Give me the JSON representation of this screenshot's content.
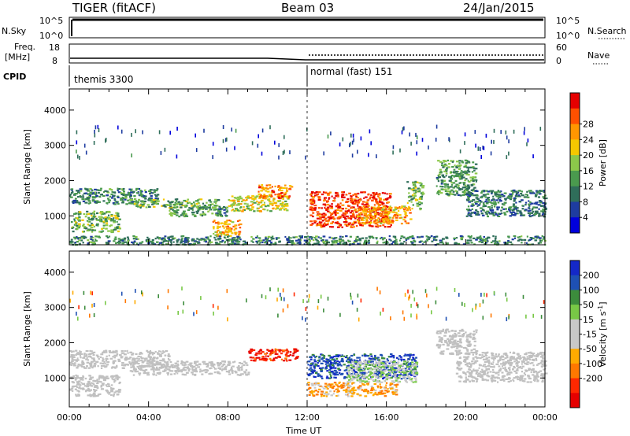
{
  "header": {
    "title": "TIGER (fitACF)",
    "beam": "Beam 03",
    "date": "24/Jan/2015"
  },
  "strips": {
    "nsky_label": "N.Sky",
    "nsearch_label": "N.Search",
    "nsky_ticks": [
      "10^5",
      "10^0"
    ],
    "nsearch_ticks": [
      "10^5",
      "10^0"
    ],
    "freq_label_line1": "Freq.",
    "freq_label_line2": "[MHz]",
    "freq_ticks": [
      "18",
      "8"
    ],
    "nave_label": "Nave",
    "nave_ticks": [
      "60",
      "0"
    ],
    "cpid_label": "CPID",
    "cpid_segments": [
      "themis 3300",
      "normal (fast) 151"
    ]
  },
  "colors": {
    "power_scale": [
      "#0000dc",
      "#1e3ca0",
      "#2f6e5a",
      "#4a9a4e",
      "#8cc84a",
      "#f5c800",
      "#ff9600",
      "#ff5000",
      "#e60000"
    ],
    "velocity_scale": [
      "#1428c8",
      "#1e50b4",
      "#3c8c3c",
      "#78c846",
      "#c8c8c8",
      "#c8c8c8",
      "#ffaa00",
      "#ff7800",
      "#ff2800",
      "#e60000"
    ],
    "ground_scatter": "#c0c0c0"
  },
  "chart_data": [
    {
      "type": "heatmap",
      "panel": "power",
      "ylabel": "Slant Range [km]",
      "yticks": [
        "1000",
        "2000",
        "3000",
        "4000"
      ],
      "ylim": [
        180,
        4600
      ],
      "colorbar_label": "Power [dB]",
      "colorbar_ticks": [
        "4",
        "8",
        "12",
        "16",
        "20",
        "24",
        "28"
      ],
      "color_range": [
        0,
        32
      ],
      "x_range_hours": [
        0,
        24
      ],
      "regions": [
        {
          "t0": 0.0,
          "t1": 4.5,
          "r0": 1350,
          "r1": 1800,
          "level": 10
        },
        {
          "t0": 0.0,
          "t1": 2.5,
          "r0": 550,
          "r1": 1150,
          "level": 14
        },
        {
          "t0": 3.0,
          "t1": 7.5,
          "r0": 1250,
          "r1": 1500,
          "level": 14
        },
        {
          "t0": 5.0,
          "t1": 8.0,
          "r0": 1000,
          "r1": 1300,
          "level": 11
        },
        {
          "t0": 7.2,
          "t1": 8.6,
          "r0": 450,
          "r1": 900,
          "level": 22
        },
        {
          "t0": 8.0,
          "t1": 11.0,
          "r0": 1150,
          "r1": 1600,
          "level": 18
        },
        {
          "t0": 9.5,
          "t1": 11.2,
          "r0": 1500,
          "r1": 1900,
          "level": 24
        },
        {
          "t0": 12.1,
          "t1": 16.2,
          "r0": 700,
          "r1": 1700,
          "level": 28
        },
        {
          "t0": 14.5,
          "t1": 17.2,
          "r0": 800,
          "r1": 1300,
          "level": 22
        },
        {
          "t0": 17.0,
          "t1": 17.8,
          "r0": 1200,
          "r1": 2000,
          "level": 14
        },
        {
          "t0": 18.5,
          "t1": 20.5,
          "r0": 1600,
          "r1": 2600,
          "level": 12
        },
        {
          "t0": 20.0,
          "t1": 24.0,
          "r0": 1000,
          "r1": 1750,
          "level": 9
        },
        {
          "t0": 0.0,
          "t1": 24.0,
          "r0": 200,
          "r1": 450,
          "level": 10
        }
      ]
    },
    {
      "type": "heatmap",
      "panel": "velocity",
      "ylabel": "Slant Range [km]",
      "yticks": [
        "1000",
        "2000",
        "3000",
        "4000"
      ],
      "ylim": [
        180,
        4600
      ],
      "xlabel": "Time UT",
      "xticks": [
        "00:00",
        "04:00",
        "08:00",
        "12:00",
        "16:00",
        "20:00",
        "00:00"
      ],
      "colorbar_label": "Velocity [m s^-1]",
      "colorbar_ticks": [
        "200",
        "100",
        "50",
        "15",
        "-15",
        "-50",
        "-100",
        "-200"
      ],
      "color_range": [
        -250,
        250
      ],
      "x_range_hours": [
        0,
        24
      ],
      "regions": [
        {
          "t0": 0.0,
          "t1": 5.0,
          "r0": 1300,
          "r1": 1800,
          "level": 0,
          "ground": true
        },
        {
          "t0": 3.0,
          "t1": 9.0,
          "r0": 1100,
          "r1": 1500,
          "level": 0,
          "ground": true
        },
        {
          "t0": 0.0,
          "t1": 2.5,
          "r0": 500,
          "r1": 1100,
          "level": 0,
          "ground": true
        },
        {
          "t0": 9.0,
          "t1": 11.5,
          "r0": 1500,
          "r1": 1850,
          "level": -180
        },
        {
          "t0": 12.0,
          "t1": 17.5,
          "r0": 1000,
          "r1": 1700,
          "level": 180
        },
        {
          "t0": 14.0,
          "t1": 17.5,
          "r0": 900,
          "r1": 1500,
          "level": 40
        },
        {
          "t0": 12.0,
          "t1": 16.5,
          "r0": 500,
          "r1": 900,
          "level": -80
        },
        {
          "t0": 19.5,
          "t1": 24.0,
          "r0": 900,
          "r1": 1750,
          "level": 0,
          "ground": true
        },
        {
          "t0": 18.5,
          "t1": 20.5,
          "r0": 1700,
          "r1": 2400,
          "level": 0,
          "ground": true
        }
      ]
    }
  ]
}
